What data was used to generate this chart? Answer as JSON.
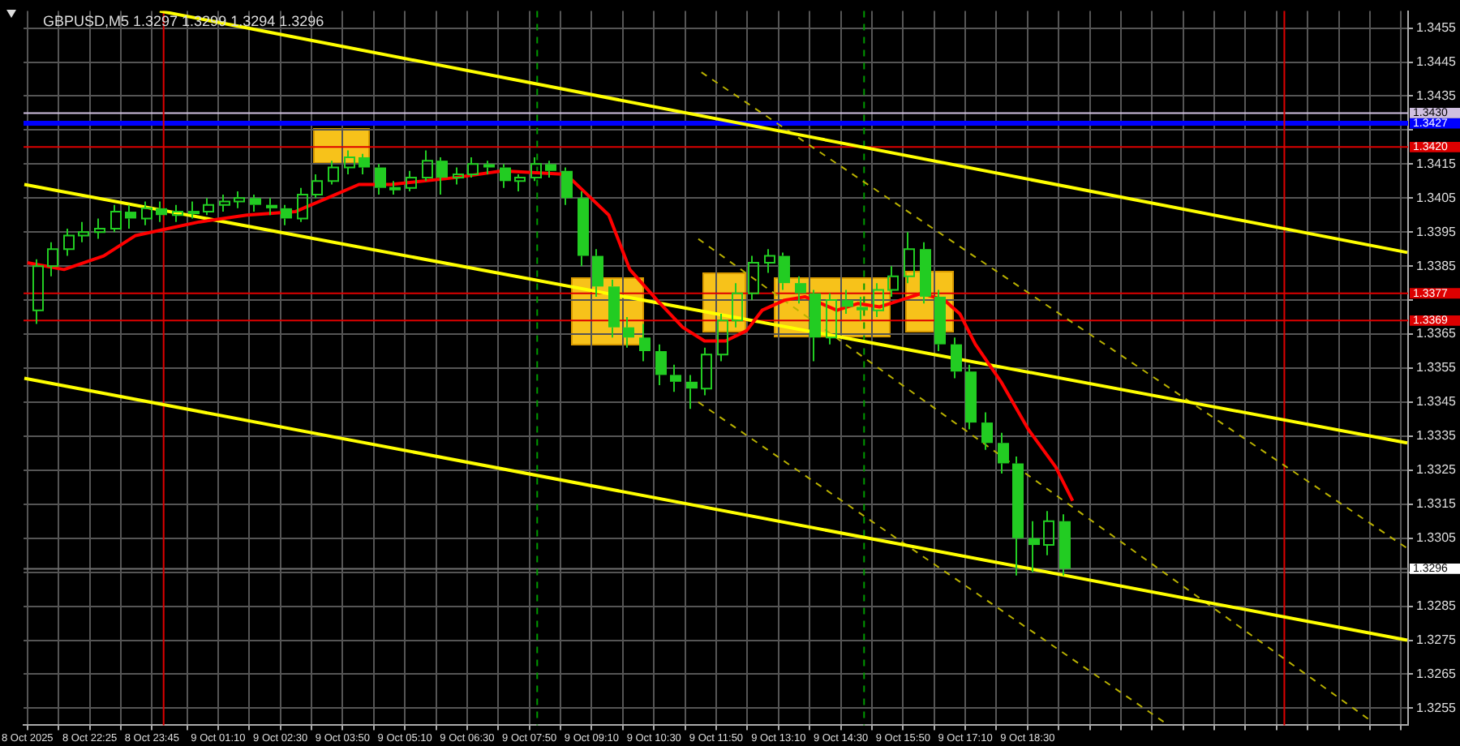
{
  "chart_data": {
    "type": "candlestick",
    "title": "GBPUSD,M5 1.3297 1.3299 1.3294 1.3296",
    "color": "#22cc22",
    "x": [
      "2025-10-08T21:15",
      "2025-10-08T21:35",
      "2025-10-08T21:55",
      "2025-10-08T22:15",
      "2025-10-08T22:35",
      "2025-10-08T22:55",
      "2025-10-08T23:15",
      "2025-10-08T23:35",
      "2025-10-08T23:55",
      "2025-10-09T00:15",
      "2025-10-09T00:35",
      "2025-10-09T00:55",
      "2025-10-09T01:15",
      "2025-10-09T01:35",
      "2025-10-09T01:55",
      "2025-10-09T02:15",
      "2025-10-09T02:35",
      "2025-10-09T02:55",
      "2025-10-09T03:15",
      "2025-10-09T03:35",
      "2025-10-09T03:55",
      "2025-10-09T04:15",
      "2025-10-09T04:35",
      "2025-10-09T04:55",
      "2025-10-09T05:15",
      "2025-10-09T05:35",
      "2025-10-09T05:55",
      "2025-10-09T06:15",
      "2025-10-09T06:35",
      "2025-10-09T06:55",
      "2025-10-09T07:15",
      "2025-10-09T07:35",
      "2025-10-09T07:55",
      "2025-10-09T08:15",
      "2025-10-09T08:35",
      "2025-10-09T08:55",
      "2025-10-09T09:15",
      "2025-10-09T09:35",
      "2025-10-09T09:55",
      "2025-10-09T10:15",
      "2025-10-09T10:35",
      "2025-10-09T10:55",
      "2025-10-09T11:15",
      "2025-10-09T11:35",
      "2025-10-09T11:55",
      "2025-10-09T12:15",
      "2025-10-09T12:35",
      "2025-10-09T12:55",
      "2025-10-09T13:15",
      "2025-10-09T13:35",
      "2025-10-09T13:55",
      "2025-10-09T14:15",
      "2025-10-09T14:35",
      "2025-10-09T14:55",
      "2025-10-09T15:15",
      "2025-10-09T15:35",
      "2025-10-09T15:55",
      "2025-10-09T16:15",
      "2025-10-09T16:35",
      "2025-10-09T16:55",
      "2025-10-09T17:15",
      "2025-10-09T17:35",
      "2025-10-09T17:55",
      "2025-10-09T18:15",
      "2025-10-09T18:35",
      "2025-10-09T18:55",
      "2025-10-09T19:15"
    ],
    "ohlc": [
      [
        1.3372,
        1.3387,
        1.3368,
        1.3385
      ],
      [
        1.3385,
        1.3392,
        1.3382,
        1.339
      ],
      [
        1.339,
        1.3396,
        1.3388,
        1.3394
      ],
      [
        1.3394,
        1.3398,
        1.3392,
        1.3395
      ],
      [
        1.3395,
        1.3399,
        1.3393,
        1.3396
      ],
      [
        1.3396,
        1.3403,
        1.3395,
        1.3401
      ],
      [
        1.3401,
        1.3403,
        1.3396,
        1.3399
      ],
      [
        1.3399,
        1.3404,
        1.3397,
        1.3402
      ],
      [
        1.3402,
        1.3404,
        1.3398,
        1.34
      ],
      [
        1.34,
        1.3403,
        1.3398,
        1.3401
      ],
      [
        1.3401,
        1.3404,
        1.3399,
        1.3401
      ],
      [
        1.3401,
        1.3405,
        1.34,
        1.3403
      ],
      [
        1.3403,
        1.3406,
        1.3401,
        1.3404
      ],
      [
        1.3404,
        1.3407,
        1.3402,
        1.3405
      ],
      [
        1.3405,
        1.3406,
        1.3401,
        1.3403
      ],
      [
        1.3403,
        1.3405,
        1.34,
        1.3402
      ],
      [
        1.3402,
        1.3403,
        1.3397,
        1.3399
      ],
      [
        1.3399,
        1.3408,
        1.3398,
        1.3406
      ],
      [
        1.3406,
        1.3412,
        1.3405,
        1.341
      ],
      [
        1.341,
        1.3416,
        1.3409,
        1.3414
      ],
      [
        1.3414,
        1.3419,
        1.3412,
        1.3417
      ],
      [
        1.3417,
        1.3418,
        1.3412,
        1.3414
      ],
      [
        1.3414,
        1.3415,
        1.3406,
        1.3408
      ],
      [
        1.3408,
        1.341,
        1.3406,
        1.3408
      ],
      [
        1.3408,
        1.3413,
        1.3407,
        1.3411
      ],
      [
        1.3411,
        1.3419,
        1.341,
        1.3416
      ],
      [
        1.3416,
        1.3417,
        1.3406,
        1.3411
      ],
      [
        1.3411,
        1.3414,
        1.3409,
        1.3412
      ],
      [
        1.3412,
        1.3417,
        1.3411,
        1.3415
      ],
      [
        1.3415,
        1.3416,
        1.3412,
        1.3414
      ],
      [
        1.3414,
        1.3415,
        1.3408,
        1.341
      ],
      [
        1.341,
        1.3412,
        1.3407,
        1.3411
      ],
      [
        1.3411,
        1.3417,
        1.341,
        1.3415
      ],
      [
        1.3415,
        1.3416,
        1.3411,
        1.3413
      ],
      [
        1.3413,
        1.3414,
        1.3403,
        1.3405
      ],
      [
        1.3405,
        1.3407,
        1.3385,
        1.3388
      ],
      [
        1.3388,
        1.339,
        1.3376,
        1.3379
      ],
      [
        1.3379,
        1.3381,
        1.3364,
        1.3367
      ],
      [
        1.3367,
        1.337,
        1.3361,
        1.3364
      ],
      [
        1.3364,
        1.3368,
        1.3357,
        1.336
      ],
      [
        1.336,
        1.3362,
        1.335,
        1.3353
      ],
      [
        1.3353,
        1.3356,
        1.3348,
        1.3351
      ],
      [
        1.3351,
        1.3353,
        1.3343,
        1.3349
      ],
      [
        1.3349,
        1.3361,
        1.3347,
        1.3359
      ],
      [
        1.3359,
        1.3371,
        1.3357,
        1.3369
      ],
      [
        1.3369,
        1.338,
        1.3367,
        1.3377
      ],
      [
        1.3377,
        1.3388,
        1.3375,
        1.3386
      ],
      [
        1.3386,
        1.339,
        1.3383,
        1.3388
      ],
      [
        1.3388,
        1.3389,
        1.3378,
        1.338
      ],
      [
        1.338,
        1.3382,
        1.3374,
        1.3377
      ],
      [
        1.3377,
        1.3378,
        1.3357,
        1.3364
      ],
      [
        1.3364,
        1.3377,
        1.3362,
        1.3375
      ],
      [
        1.3375,
        1.3378,
        1.3371,
        1.3373
      ],
      [
        1.3373,
        1.3376,
        1.3369,
        1.3372
      ],
      [
        1.3372,
        1.338,
        1.337,
        1.3378
      ],
      [
        1.3378,
        1.3385,
        1.3376,
        1.3382
      ],
      [
        1.3382,
        1.3395,
        1.338,
        1.339
      ],
      [
        1.339,
        1.3392,
        1.3374,
        1.3376
      ],
      [
        1.3376,
        1.3378,
        1.336,
        1.3362
      ],
      [
        1.3362,
        1.3364,
        1.3352,
        1.3354
      ],
      [
        1.3354,
        1.3356,
        1.3337,
        1.3339
      ],
      [
        1.3339,
        1.3342,
        1.3331,
        1.3333
      ],
      [
        1.3333,
        1.3336,
        1.3324,
        1.3327
      ],
      [
        1.3327,
        1.3329,
        1.3294,
        1.3305
      ],
      [
        1.3305,
        1.331,
        1.3295,
        1.3303
      ],
      [
        1.3303,
        1.3313,
        1.33,
        1.331
      ],
      [
        1.331,
        1.3312,
        1.3294,
        1.3296
      ]
    ],
    "series": [
      {
        "type": "line",
        "color": "#ff0000",
        "x": [
          "2025-10-08T21:05",
          "2025-10-08T21:52",
          "2025-10-08T22:43",
          "2025-10-08T23:24",
          "2025-10-09T00:05",
          "2025-10-09T00:46",
          "2025-10-09T01:47",
          "2025-10-09T02:49",
          "2025-10-09T03:30",
          "2025-10-09T04:11",
          "2025-10-09T04:52",
          "2025-10-09T06:14",
          "2025-10-09T07:15",
          "2025-10-09T08:37",
          "2025-10-09T09:32",
          "2025-10-09T09:59",
          "2025-10-09T10:34",
          "2025-10-09T11:07",
          "2025-10-09T11:35",
          "2025-10-09T12:02",
          "2025-10-09T12:29",
          "2025-10-09T12:49",
          "2025-10-09T13:18",
          "2025-10-09T13:44",
          "2025-10-09T14:05",
          "2025-10-09T14:25",
          "2025-10-09T14:52",
          "2025-10-09T15:20",
          "2025-10-09T15:47",
          "2025-10-09T16:14",
          "2025-10-09T16:43",
          "2025-10-09T17:03",
          "2025-10-09T17:23",
          "2025-10-09T17:56",
          "2025-10-09T18:31",
          "2025-10-09T19:06",
          "2025-10-09T19:28"
        ],
        "values": [
          1.3386,
          1.3384,
          1.3388,
          1.3394,
          1.3396,
          1.3398,
          1.34,
          1.3401,
          1.3405,
          1.3409,
          1.3409,
          1.3411,
          1.3413,
          1.3412,
          1.34,
          1.3384,
          1.3375,
          1.3367,
          1.3363,
          1.3363,
          1.3366,
          1.3372,
          1.3375,
          1.3376,
          1.3374,
          1.3372,
          1.3374,
          1.3373,
          1.3375,
          1.3377,
          1.3375,
          1.3371,
          1.3362,
          1.3351,
          1.3337,
          1.3326,
          1.3316
        ]
      },
      {
        "type": "line",
        "color": "#ffff00",
        "x": [
          "2025-10-08T23:55",
          "2025-10-10T02:38"
        ],
        "values": [
          1.346,
          1.3389
        ]
      },
      {
        "type": "line",
        "color": "#ffff00",
        "x": [
          "2025-10-08T21:01",
          "2025-10-10T02:38"
        ],
        "values": [
          1.3409,
          1.3333
        ]
      },
      {
        "type": "line",
        "color": "#ffff00",
        "x": [
          "2025-10-08T21:01",
          "2025-10-10T02:38"
        ],
        "values": [
          1.3352,
          1.3275
        ]
      },
      {
        "type": "line",
        "color": "#b8b000",
        "line_style": "dashed",
        "x": [
          "2025-10-09T11:31",
          "2025-10-10T02:38"
        ],
        "values": [
          1.3442,
          1.3302
        ]
      },
      {
        "type": "line",
        "color": "#b8b000",
        "line_style": "dashed",
        "x": [
          "2025-10-09T11:27",
          "2025-10-10T01:53"
        ],
        "values": [
          1.3393,
          1.3251
        ]
      },
      {
        "type": "line",
        "color": "#b8b000",
        "line_style": "dashed",
        "x": [
          "2025-10-09T11:27",
          "2025-10-09T21:25"
        ],
        "values": [
          1.3345,
          1.3251
        ]
      }
    ],
    "ref_lines": [
      {
        "axis": "y",
        "value": 1.3427,
        "label": "1.3427",
        "color": "#0000ff"
      },
      {
        "axis": "y",
        "value": 1.343,
        "label": "1.3430",
        "color": "#d0c0e0"
      },
      {
        "axis": "y",
        "value": 1.342,
        "label": "1.3420",
        "color": "#dd0000"
      },
      {
        "axis": "y",
        "value": 1.3377,
        "label": "1.3377",
        "color": "#dd0000"
      },
      {
        "axis": "y",
        "value": 1.3369,
        "label": "1.3369",
        "color": "#dd0000"
      },
      {
        "axis": "y",
        "value": 1.3296,
        "label": "1.3296",
        "color": "#707070"
      },
      {
        "axis": "x",
        "value": "2025-10-09T00:00",
        "color": "#dd0000"
      },
      {
        "axis": "x",
        "value": "2025-10-10T00:00",
        "color": "#dd0000"
      },
      {
        "axis": "x",
        "value": "2025-10-09T08:00",
        "color": "#009900",
        "line_style": "dashed"
      },
      {
        "axis": "x",
        "value": "2025-10-09T15:00",
        "color": "#009900",
        "line_style": "dashed"
      }
    ],
    "xlim": [
      "2025-10-08T21:00",
      "2025-10-10T02:39"
    ],
    "xticks": [
      {
        "value": "2025-10-08T21:05",
        "label": "8 Oct 2025"
      },
      {
        "value": "2025-10-08T21:45",
        "label": null
      },
      {
        "value": "2025-10-08T22:25",
        "label": "8 Oct 22:25"
      },
      {
        "value": "2025-10-08T23:05",
        "label": null
      },
      {
        "value": "2025-10-08T23:45",
        "label": "8 Oct 23:45"
      },
      {
        "value": "2025-10-09T00:30",
        "label": null
      },
      {
        "value": "2025-10-09T01:10",
        "label": "9 Oct 01:10"
      },
      {
        "value": "2025-10-09T01:50",
        "label": null
      },
      {
        "value": "2025-10-09T02:30",
        "label": "9 Oct 02:30"
      },
      {
        "value": "2025-10-09T03:10",
        "label": null
      },
      {
        "value": "2025-10-09T03:50",
        "label": "9 Oct 03:50"
      },
      {
        "value": "2025-10-09T04:30",
        "label": null
      },
      {
        "value": "2025-10-09T05:10",
        "label": "9 Oct 05:10"
      },
      {
        "value": "2025-10-09T05:50",
        "label": null
      },
      {
        "value": "2025-10-09T06:30",
        "label": "9 Oct 06:30"
      },
      {
        "value": "2025-10-09T07:10",
        "label": null
      },
      {
        "value": "2025-10-09T07:50",
        "label": "9 Oct 07:50"
      },
      {
        "value": "2025-10-09T08:30",
        "label": null
      },
      {
        "value": "2025-10-09T09:10",
        "label": "9 Oct 09:10"
      },
      {
        "value": "2025-10-09T09:50",
        "label": null
      },
      {
        "value": "2025-10-09T10:30",
        "label": "9 Oct 10:30"
      },
      {
        "value": "2025-10-09T11:10",
        "label": null
      },
      {
        "value": "2025-10-09T11:50",
        "label": "9 Oct 11:50"
      },
      {
        "value": "2025-10-09T12:30",
        "label": null
      },
      {
        "value": "2025-10-09T13:10",
        "label": "9 Oct 13:10"
      },
      {
        "value": "2025-10-09T13:50",
        "label": null
      },
      {
        "value": "2025-10-09T14:30",
        "label": "9 Oct 14:30"
      },
      {
        "value": "2025-10-09T15:10",
        "label": null
      },
      {
        "value": "2025-10-09T15:50",
        "label": "9 Oct 15:50"
      },
      {
        "value": "2025-10-09T16:30",
        "label": null
      },
      {
        "value": "2025-10-09T17:10",
        "label": "9 Oct 17:10"
      },
      {
        "value": "2025-10-09T17:50",
        "label": null
      },
      {
        "value": "2025-10-09T18:30",
        "label": "9 Oct 18:30"
      },
      {
        "value": "2025-10-09T19:10",
        "label": null
      },
      {
        "value": "2025-10-09T19:50",
        "label": null
      },
      {
        "value": "2025-10-09T20:30",
        "label": null
      },
      {
        "value": "2025-10-09T21:10",
        "label": null
      },
      {
        "value": "2025-10-09T21:50",
        "label": null
      },
      {
        "value": "2025-10-09T22:30",
        "label": null
      },
      {
        "value": "2025-10-09T23:10",
        "label": null
      },
      {
        "value": "2025-10-09T23:50",
        "label": null
      },
      {
        "value": "2025-10-10T00:30",
        "label": null
      },
      {
        "value": "2025-10-10T01:10",
        "label": null
      },
      {
        "value": "2025-10-10T01:50",
        "label": null
      },
      {
        "value": "2025-10-10T02:30",
        "label": null
      }
    ],
    "ylim": [
      1.325,
      1.346
    ],
    "yticks": [
      1.3255,
      1.3265,
      1.3275,
      1.3285,
      {
        "value": 1.3295,
        "label": null
      },
      1.3305,
      1.3315,
      1.3325,
      1.3335,
      1.3345,
      1.3355,
      1.3365,
      {
        "value": 1.3375,
        "label": null
      },
      1.3385,
      1.3395,
      1.3405,
      1.3415,
      {
        "value": 1.3425,
        "label": null
      },
      1.3435,
      1.3445,
      1.3455
    ],
    "grid": true,
    "legend": false
  }
}
